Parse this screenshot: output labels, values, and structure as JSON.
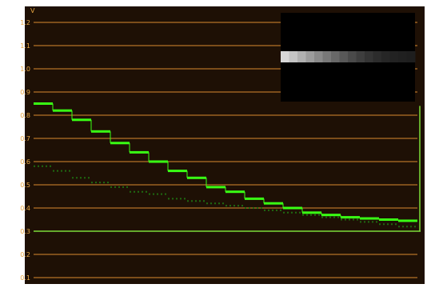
{
  "scope": {
    "unit_label": "V",
    "grid_color": "#d98a2e",
    "label_color": "#e8a640",
    "background_color": "#1e1005",
    "trace_color": "#39ff14",
    "reference_color": "#7ddc3a",
    "y_ticks": [
      "1.2",
      "1.1",
      "1.0",
      "0.9",
      "0.8",
      "0.7",
      "0.6",
      "0.5",
      "0.4",
      "0.3",
      "0.2",
      "0.1"
    ]
  },
  "preview": {
    "description_icon": "grayscale-step-thumbnail",
    "steps": [
      "#d8d8d8",
      "#c4c4c4",
      "#b0b0b0",
      "#9c9c9c",
      "#8a8a8a",
      "#787878",
      "#686868",
      "#585858",
      "#4a4a4a",
      "#3e3e3e",
      "#343434",
      "#2c2c2c",
      "#262626",
      "#222222",
      "#202020",
      "#1e1e1e"
    ]
  },
  "chart_data": {
    "type": "line",
    "title": "",
    "xlabel": "",
    "ylabel": "V",
    "ylim": [
      0.07,
      1.24
    ],
    "grid": true,
    "series": [
      {
        "values": [
          0.85,
          0.82,
          0.78,
          0.73,
          0.68,
          0.64,
          0.6,
          0.56,
          0.53,
          0.49,
          0.47,
          0.44,
          0.42,
          0.4,
          0.38,
          0.37,
          0.36,
          0.355,
          0.35,
          0.345
        ]
      },
      {
        "values": [
          0.58,
          0.56,
          0.53,
          0.51,
          0.49,
          0.47,
          0.46,
          0.44,
          0.43,
          0.42,
          0.41,
          0.4,
          0.39,
          0.38,
          0.37,
          0.36,
          0.35,
          0.34,
          0.33,
          0.32
        ]
      }
    ],
    "reference_level": 0.3,
    "reference_marker_range": [
      0.3,
      0.84
    ]
  }
}
